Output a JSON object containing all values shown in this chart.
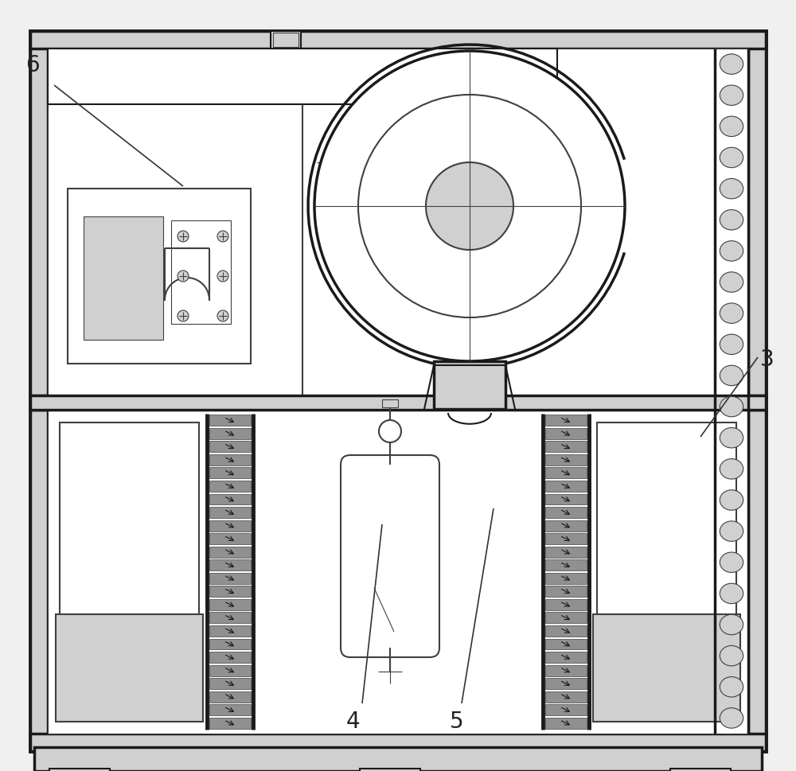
{
  "bg_color": "#f0f0f0",
  "inner_bg": "#ffffff",
  "line_color": "#404040",
  "dark_line": "#1a1a1a",
  "gray_fill": "#b8b8b8",
  "light_gray": "#d0d0d0",
  "medium_gray": "#909090",
  "label_color": "#333333",
  "fig_w": 10.0,
  "fig_h": 9.7
}
